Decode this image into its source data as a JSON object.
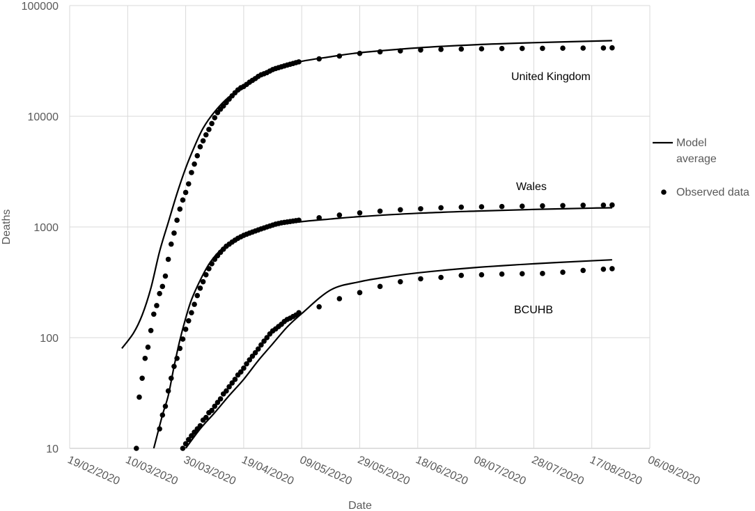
{
  "chart_data": {
    "type": "line",
    "x_label": "Date",
    "y_label": "Deaths",
    "log_y": true,
    "grid": true,
    "color": "#000000",
    "xlim": [
      "19/02/2020",
      "06/09/2020"
    ],
    "xticks": [
      "19/02/2020",
      "10/03/2020",
      "30/03/2020",
      "19/04/2020",
      "09/05/2020",
      "29/05/2020",
      "18/06/2020",
      "08/07/2020",
      "28/07/2020",
      "17/08/2020",
      "06/09/2020"
    ],
    "ylim": [
      10,
      100000
    ],
    "yticks": [
      10,
      100,
      1000,
      10000,
      100000
    ],
    "legend": {
      "model": "Model average",
      "observed": "Observed data"
    },
    "series": [
      {
        "name": "United Kingdom",
        "model": {
          "x": [
            "08/03/2020",
            "12/03/2020",
            "15/03/2020",
            "18/03/2020",
            "21/03/2020",
            "24/03/2020",
            "27/03/2020",
            "30/03/2020",
            "02/04/2020",
            "05/04/2020",
            "09/04/2020",
            "14/04/2020",
            "19/04/2020",
            "24/04/2020",
            "29/04/2020",
            "08/05/2020",
            "19/05/2020",
            "29/05/2020",
            "18/06/2020",
            "08/07/2020",
            "28/07/2020",
            "17/08/2020",
            "24/08/2020"
          ],
          "values": [
            80,
            110,
            160,
            280,
            600,
            1100,
            2000,
            3400,
            5300,
            7800,
            11000,
            15000,
            18000,
            23000,
            26500,
            31000,
            34500,
            37500,
            41500,
            44300,
            46200,
            47700,
            48200
          ]
        },
        "observed": {
          "x": [
            "13/03/2020",
            "14/03/2020",
            "15/03/2020",
            "16/03/2020",
            "17/03/2020",
            "18/03/2020",
            "19/03/2020",
            "20/03/2020",
            "21/03/2020",
            "22/03/2020",
            "23/03/2020",
            "24/03/2020",
            "25/03/2020",
            "26/03/2020",
            "27/03/2020",
            "28/03/2020",
            "29/03/2020",
            "30/03/2020",
            "31/03/2020",
            "01/04/2020",
            "02/04/2020",
            "03/04/2020",
            "04/04/2020",
            "05/04/2020",
            "06/04/2020",
            "07/04/2020",
            "08/04/2020",
            "09/04/2020",
            "10/04/2020",
            "11/04/2020",
            "12/04/2020",
            "13/04/2020",
            "14/04/2020",
            "15/04/2020",
            "16/04/2020",
            "17/04/2020",
            "18/04/2020",
            "19/04/2020",
            "20/04/2020",
            "21/04/2020",
            "22/04/2020",
            "23/04/2020",
            "24/04/2020",
            "25/04/2020",
            "26/04/2020",
            "27/04/2020",
            "28/04/2020",
            "29/04/2020",
            "30/04/2020",
            "01/05/2020",
            "02/05/2020",
            "03/05/2020",
            "04/05/2020",
            "05/05/2020",
            "06/05/2020",
            "07/05/2020",
            "08/05/2020",
            "15/05/2020",
            "22/05/2020",
            "29/05/2020",
            "05/06/2020",
            "12/06/2020",
            "19/06/2020",
            "26/06/2020",
            "03/07/2020",
            "10/07/2020",
            "17/07/2020",
            "24/07/2020",
            "31/07/2020",
            "07/08/2020",
            "14/08/2020",
            "21/08/2020",
            "24/08/2020"
          ],
          "values": [
            10,
            29,
            43,
            65,
            82,
            116,
            163,
            195,
            250,
            290,
            360,
            510,
            700,
            880,
            1150,
            1450,
            1750,
            2050,
            2450,
            3100,
            3700,
            4400,
            5300,
            6000,
            6800,
            7600,
            8600,
            9700,
            10800,
            11600,
            12400,
            13300,
            14300,
            15300,
            16300,
            17300,
            18100,
            18600,
            19400,
            20300,
            21100,
            21900,
            22900,
            23700,
            24200,
            24800,
            25600,
            26400,
            27000,
            27500,
            28000,
            28500,
            29000,
            29500,
            30000,
            30500,
            31000,
            33000,
            35000,
            37000,
            38200,
            39000,
            39700,
            40200,
            40500,
            40700,
            40900,
            41000,
            41100,
            41200,
            41300,
            41400,
            41500
          ]
        }
      },
      {
        "name": "Wales",
        "model": {
          "x": [
            "19/03/2020",
            "22/03/2020",
            "24/03/2020",
            "26/03/2020",
            "28/03/2020",
            "30/03/2020",
            "01/04/2020",
            "04/04/2020",
            "07/04/2020",
            "10/04/2020",
            "14/04/2020",
            "19/04/2020",
            "24/04/2020",
            "29/04/2020",
            "08/05/2020",
            "19/05/2020",
            "29/05/2020",
            "18/06/2020",
            "08/07/2020",
            "28/07/2020",
            "17/08/2020",
            "24/08/2020"
          ],
          "values": [
            10,
            20,
            30,
            55,
            95,
            150,
            220,
            330,
            460,
            580,
            720,
            850,
            950,
            1030,
            1110,
            1180,
            1240,
            1330,
            1390,
            1440,
            1480,
            1490
          ]
        },
        "observed": {
          "x": [
            "21/03/2020",
            "22/03/2020",
            "23/03/2020",
            "24/03/2020",
            "25/03/2020",
            "26/03/2020",
            "27/03/2020",
            "28/03/2020",
            "29/03/2020",
            "30/03/2020",
            "31/03/2020",
            "01/04/2020",
            "02/04/2020",
            "03/04/2020",
            "04/04/2020",
            "05/04/2020",
            "06/04/2020",
            "07/04/2020",
            "08/04/2020",
            "09/04/2020",
            "10/04/2020",
            "11/04/2020",
            "12/04/2020",
            "13/04/2020",
            "14/04/2020",
            "15/04/2020",
            "16/04/2020",
            "17/04/2020",
            "18/04/2020",
            "19/04/2020",
            "20/04/2020",
            "21/04/2020",
            "22/04/2020",
            "23/04/2020",
            "24/04/2020",
            "25/04/2020",
            "26/04/2020",
            "27/04/2020",
            "28/04/2020",
            "29/04/2020",
            "30/04/2020",
            "01/05/2020",
            "02/05/2020",
            "03/05/2020",
            "04/05/2020",
            "05/05/2020",
            "06/05/2020",
            "07/05/2020",
            "08/05/2020",
            "15/05/2020",
            "22/05/2020",
            "29/05/2020",
            "05/06/2020",
            "12/06/2020",
            "19/06/2020",
            "26/06/2020",
            "03/07/2020",
            "10/07/2020",
            "17/07/2020",
            "24/07/2020",
            "31/07/2020",
            "07/08/2020",
            "14/08/2020",
            "21/08/2020",
            "24/08/2020"
          ],
          "values": [
            15,
            20,
            24,
            33,
            43,
            55,
            65,
            80,
            97,
            119,
            142,
            168,
            200,
            240,
            280,
            320,
            370,
            420,
            465,
            510,
            550,
            590,
            630,
            670,
            700,
            730,
            760,
            790,
            815,
            840,
            860,
            880,
            900,
            920,
            940,
            960,
            980,
            1000,
            1020,
            1040,
            1060,
            1075,
            1090,
            1100,
            1110,
            1120,
            1130,
            1140,
            1150,
            1210,
            1280,
            1340,
            1390,
            1430,
            1460,
            1490,
            1510,
            1520,
            1530,
            1540,
            1550,
            1560,
            1570,
            1575,
            1580
          ]
        }
      },
      {
        "name": "BCUHB",
        "model": {
          "x": [
            "30/03/2020",
            "04/04/2020",
            "09/04/2020",
            "14/04/2020",
            "19/04/2020",
            "24/04/2020",
            "29/04/2020",
            "04/05/2020",
            "09/05/2020",
            "19/05/2020",
            "29/05/2020",
            "08/06/2020",
            "18/06/2020",
            "08/07/2020",
            "28/07/2020",
            "17/08/2020",
            "24/08/2020"
          ],
          "values": [
            10,
            15,
            21,
            30,
            42,
            62,
            88,
            125,
            165,
            270,
            320,
            355,
            385,
            430,
            465,
            495,
            505
          ]
        },
        "observed": {
          "x": [
            "29/03/2020",
            "30/03/2020",
            "31/03/2020",
            "01/04/2020",
            "02/04/2020",
            "03/04/2020",
            "04/04/2020",
            "05/04/2020",
            "06/04/2020",
            "07/04/2020",
            "08/04/2020",
            "09/04/2020",
            "10/04/2020",
            "11/04/2020",
            "12/04/2020",
            "13/04/2020",
            "14/04/2020",
            "15/04/2020",
            "16/04/2020",
            "17/04/2020",
            "18/04/2020",
            "19/04/2020",
            "20/04/2020",
            "21/04/2020",
            "22/04/2020",
            "23/04/2020",
            "24/04/2020",
            "25/04/2020",
            "26/04/2020",
            "27/04/2020",
            "28/04/2020",
            "29/04/2020",
            "30/04/2020",
            "01/05/2020",
            "02/05/2020",
            "03/05/2020",
            "04/05/2020",
            "05/05/2020",
            "06/05/2020",
            "07/05/2020",
            "08/05/2020",
            "15/05/2020",
            "22/05/2020",
            "29/05/2020",
            "05/06/2020",
            "12/06/2020",
            "19/06/2020",
            "26/06/2020",
            "03/07/2020",
            "10/07/2020",
            "17/07/2020",
            "24/07/2020",
            "31/07/2020",
            "07/08/2020",
            "14/08/2020",
            "21/08/2020",
            "24/08/2020"
          ],
          "values": [
            10,
            11,
            12,
            13,
            14,
            15,
            16,
            18,
            19,
            21,
            22,
            24,
            26,
            28,
            31,
            33,
            36,
            39,
            42,
            46,
            49,
            53,
            58,
            63,
            68,
            73,
            79,
            86,
            93,
            100,
            108,
            115,
            120,
            126,
            132,
            140,
            146,
            150,
            155,
            160,
            168,
            190,
            225,
            255,
            290,
            320,
            340,
            350,
            365,
            370,
            375,
            378,
            380,
            390,
            405,
            415,
            420
          ]
        }
      }
    ]
  }
}
